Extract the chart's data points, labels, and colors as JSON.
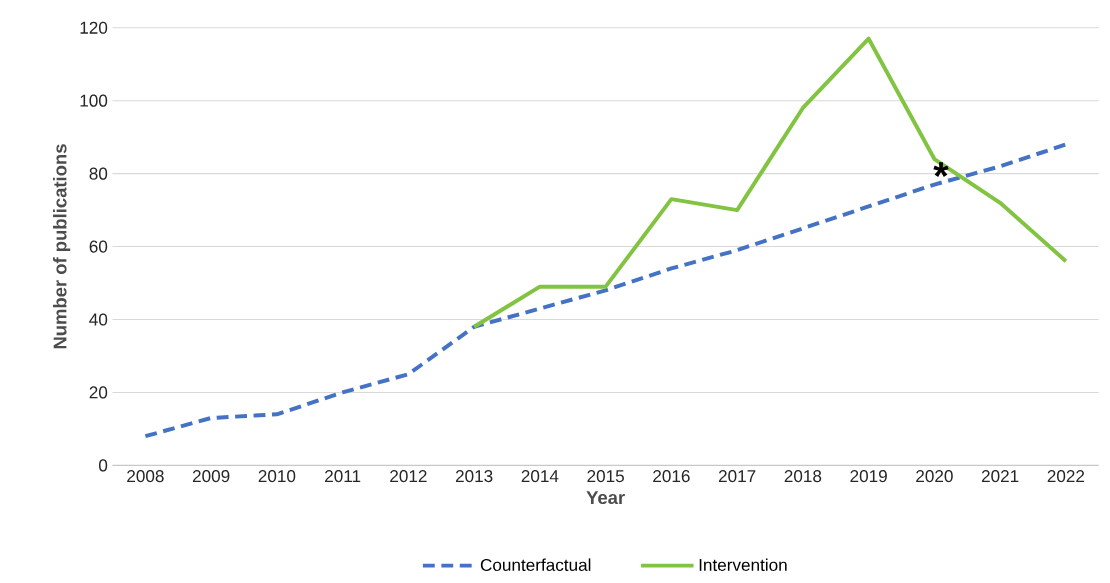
{
  "chart_data": {
    "type": "line",
    "xlabel": "Year",
    "ylabel": "Number of publications",
    "categories": [
      "2008",
      "2009",
      "2010",
      "2011",
      "2012",
      "2013",
      "2014",
      "2015",
      "2016",
      "2017",
      "2018",
      "2019",
      "2020",
      "2021",
      "2022"
    ],
    "series": [
      {
        "name": "Counterfactual",
        "color": "#4472c4",
        "line_style": "dashed",
        "values": [
          8,
          13,
          14,
          20,
          25,
          38,
          43,
          48,
          54,
          59,
          65,
          71,
          77,
          82,
          88
        ]
      },
      {
        "name": "Intervention",
        "color": "#82c341",
        "line_style": "solid",
        "values": [
          null,
          null,
          null,
          null,
          null,
          38,
          49,
          49,
          73,
          70,
          98,
          117,
          84,
          72,
          56
        ]
      }
    ],
    "ylim": [
      0,
      120
    ],
    "yticks": [
      0,
      20,
      40,
      60,
      80,
      100,
      120
    ],
    "grid": "y",
    "legend": "bottom",
    "marker": "none",
    "annotations": [
      "*"
    ]
  }
}
